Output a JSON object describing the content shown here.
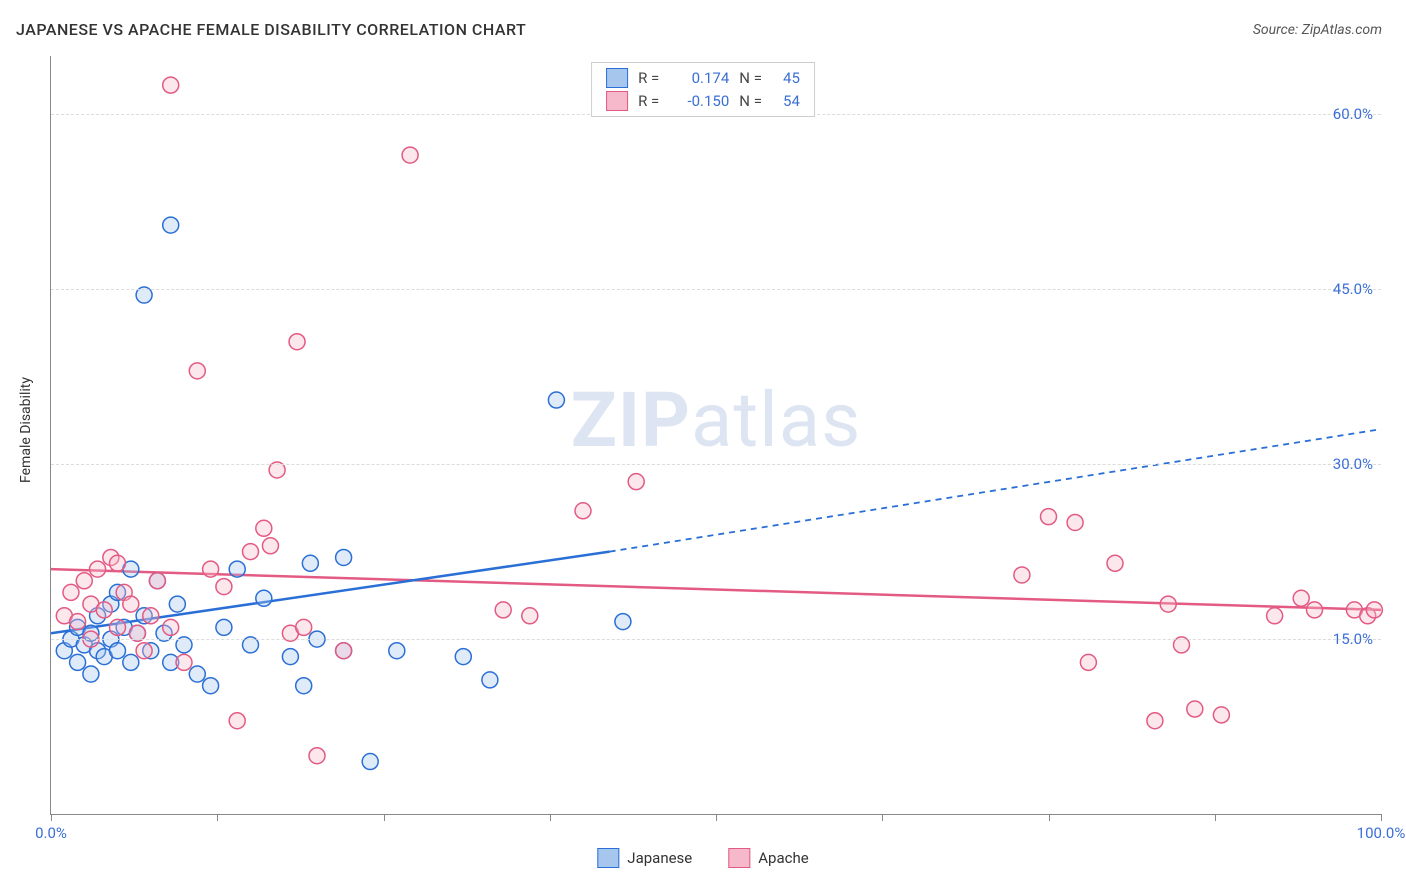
{
  "title": "JAPANESE VS APACHE FEMALE DISABILITY CORRELATION CHART",
  "source_label": "Source: ZipAtlas.com",
  "watermark_a": "ZIP",
  "watermark_b": "atlas",
  "y_axis_title": "Female Disability",
  "chart": {
    "type": "scatter",
    "xlim": [
      0,
      100
    ],
    "ylim": [
      0,
      65
    ],
    "x_ticks": [
      0,
      12.5,
      25,
      37.5,
      50,
      62.5,
      75,
      87.5,
      100
    ],
    "x_tick_labels": {
      "0": "0.0%",
      "100": "100.0%"
    },
    "y_gridlines": [
      15,
      30,
      45,
      60
    ],
    "y_tick_labels": {
      "15": "15.0%",
      "30": "30.0%",
      "45": "45.0%",
      "60": "60.0%"
    },
    "background_color": "#ffffff",
    "grid_color": "#dcdcdc",
    "axis_color": "#888888",
    "marker_radius": 8,
    "marker_stroke_width": 1.5,
    "marker_fill_opacity": 0.35,
    "series": [
      {
        "name": "Japanese",
        "legend_label": "Japanese",
        "stroke": "#2a6fd6",
        "fill": "#a6c6ee",
        "R_label": "R =",
        "R_value": "0.174",
        "N_label": "N =",
        "N_value": "45",
        "trend": {
          "x1": 0,
          "y1": 15.5,
          "x_solid_end": 42,
          "y_solid_end": 22.5,
          "x2": 100,
          "y2": 33.0,
          "solid_width": 2.5,
          "dash": "6,5"
        },
        "points": [
          [
            1,
            14
          ],
          [
            1.5,
            15
          ],
          [
            2,
            13
          ],
          [
            2,
            16
          ],
          [
            2.5,
            14.5
          ],
          [
            3,
            12
          ],
          [
            3,
            15.5
          ],
          [
            3.5,
            14
          ],
          [
            3.5,
            17
          ],
          [
            4,
            13.5
          ],
          [
            4.5,
            15
          ],
          [
            4.5,
            18
          ],
          [
            5,
            14
          ],
          [
            5,
            19
          ],
          [
            5.5,
            16
          ],
          [
            6,
            13
          ],
          [
            6,
            21
          ],
          [
            6.5,
            15.5
          ],
          [
            7,
            44.5
          ],
          [
            7,
            17
          ],
          [
            7.5,
            14
          ],
          [
            8,
            20
          ],
          [
            8.5,
            15.5
          ],
          [
            9,
            50.5
          ],
          [
            9,
            13
          ],
          [
            9.5,
            18
          ],
          [
            10,
            14.5
          ],
          [
            11,
            12
          ],
          [
            12,
            11
          ],
          [
            13,
            16
          ],
          [
            14,
            21
          ],
          [
            15,
            14.5
          ],
          [
            16,
            18.5
          ],
          [
            18,
            13.5
          ],
          [
            19,
            11
          ],
          [
            19.5,
            21.5
          ],
          [
            20,
            15
          ],
          [
            22,
            22
          ],
          [
            22,
            14
          ],
          [
            24,
            4.5
          ],
          [
            26,
            14
          ],
          [
            31,
            13.5
          ],
          [
            33,
            11.5
          ],
          [
            38,
            35.5
          ],
          [
            43,
            16.5
          ]
        ]
      },
      {
        "name": "Apache",
        "legend_label": "Apache",
        "stroke": "#e35a82",
        "fill": "#f5b9cb",
        "R_label": "R =",
        "R_value": "-0.150",
        "N_label": "N =",
        "N_value": "54",
        "trend": {
          "x1": 0,
          "y1": 21.0,
          "x_solid_end": 100,
          "y_solid_end": 17.5,
          "x2": 100,
          "y2": 17.5,
          "solid_width": 2.5,
          "dash": ""
        },
        "points": [
          [
            1,
            17
          ],
          [
            1.5,
            19
          ],
          [
            2,
            16.5
          ],
          [
            2.5,
            20
          ],
          [
            3,
            18
          ],
          [
            3,
            15
          ],
          [
            3.5,
            21
          ],
          [
            4,
            17.5
          ],
          [
            4.5,
            22
          ],
          [
            5,
            16
          ],
          [
            5,
            21.5
          ],
          [
            5.5,
            19
          ],
          [
            6,
            18
          ],
          [
            6.5,
            15.5
          ],
          [
            7,
            14
          ],
          [
            7.5,
            17
          ],
          [
            8,
            20
          ],
          [
            9,
            62.5
          ],
          [
            9,
            16
          ],
          [
            10,
            13
          ],
          [
            11,
            38
          ],
          [
            12,
            21
          ],
          [
            13,
            19.5
          ],
          [
            14,
            8
          ],
          [
            15,
            22.5
          ],
          [
            16,
            24.5
          ],
          [
            16.5,
            23
          ],
          [
            17,
            29.5
          ],
          [
            18,
            15.5
          ],
          [
            18.5,
            40.5
          ],
          [
            19,
            16
          ],
          [
            20,
            5
          ],
          [
            22,
            14
          ],
          [
            27,
            56.5
          ],
          [
            34,
            17.5
          ],
          [
            36,
            17
          ],
          [
            40,
            26
          ],
          [
            44,
            28.5
          ],
          [
            73,
            20.5
          ],
          [
            75,
            25.5
          ],
          [
            77,
            25
          ],
          [
            78,
            13
          ],
          [
            80,
            21.5
          ],
          [
            83,
            8
          ],
          [
            84,
            18
          ],
          [
            85,
            14.5
          ],
          [
            86,
            9
          ],
          [
            88,
            8.5
          ],
          [
            92,
            17
          ],
          [
            94,
            18.5
          ],
          [
            95,
            17.5
          ],
          [
            98,
            17.5
          ],
          [
            99,
            17
          ],
          [
            99.5,
            17.5
          ]
        ]
      }
    ]
  },
  "legend_bottom": [
    {
      "label": "Japanese",
      "fill": "#a6c6ee",
      "stroke": "#2a6fd6"
    },
    {
      "label": "Apache",
      "fill": "#f5b9cb",
      "stroke": "#e35a82"
    }
  ],
  "colors": {
    "title": "#333333",
    "tick_label": "#3b6fd6",
    "stat_value": "#3b6fd6",
    "stat_label": "#444444"
  },
  "fontsize": {
    "title": 16,
    "tick": 15,
    "axis_title": 14,
    "legend": 15,
    "stat": 15,
    "watermark": 76
  }
}
